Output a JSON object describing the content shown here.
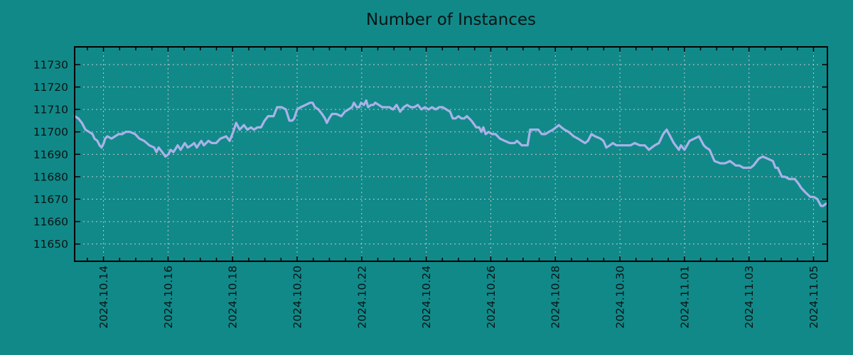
{
  "colors": {
    "background": "#118989",
    "line": "#aab2e8",
    "grid": "#c2c8c5",
    "axis": "#000000",
    "text": "#0a1414"
  },
  "chart_data": {
    "type": "line",
    "title": "Number of Instances",
    "xlabel": "",
    "ylabel": "",
    "legend": false,
    "grid": true,
    "x_unit_days_since": "2024-10-13 00:00",
    "xlim": [
      0.106,
      23.43
    ],
    "ylim": [
      11642.3,
      11737.9
    ],
    "y_ticks": [
      11650,
      11660,
      11670,
      11680,
      11690,
      11700,
      11710,
      11720,
      11730
    ],
    "x_minor_tick_step_days": 0.5,
    "x_major_ticks": [
      {
        "t": 1,
        "label": "2024.10.14"
      },
      {
        "t": 3,
        "label": "2024.10.16"
      },
      {
        "t": 5,
        "label": "2024.10.18"
      },
      {
        "t": 7,
        "label": "2024.10.20"
      },
      {
        "t": 9,
        "label": "2024.10.22"
      },
      {
        "t": 11,
        "label": "2024.10.24"
      },
      {
        "t": 13,
        "label": "2024.10.26"
      },
      {
        "t": 15,
        "label": "2024.10.28"
      },
      {
        "t": 17,
        "label": "2024.10.30"
      },
      {
        "t": 19,
        "label": "2024.11.01"
      },
      {
        "t": 21,
        "label": "2024.11.03"
      },
      {
        "t": 23,
        "label": "2024.11.05"
      }
    ],
    "series": [
      {
        "name": "instances",
        "points": [
          [
            0.11,
            11707
          ],
          [
            0.22,
            11706
          ],
          [
            0.33,
            11704
          ],
          [
            0.44,
            11701
          ],
          [
            0.55,
            11700
          ],
          [
            0.66,
            11699
          ],
          [
            0.72,
            11697
          ],
          [
            0.81,
            11696
          ],
          [
            0.88,
            11694
          ],
          [
            0.94,
            11693
          ],
          [
            1.01,
            11695
          ],
          [
            1.05,
            11697
          ],
          [
            1.12,
            11698
          ],
          [
            1.25,
            11697
          ],
          [
            1.36,
            11698
          ],
          [
            1.47,
            11699
          ],
          [
            1.58,
            11699
          ],
          [
            1.69,
            11700
          ],
          [
            1.82,
            11700
          ],
          [
            1.98,
            11699
          ],
          [
            2.11,
            11697
          ],
          [
            2.26,
            11696
          ],
          [
            2.42,
            11694
          ],
          [
            2.57,
            11693
          ],
          [
            2.64,
            11691
          ],
          [
            2.71,
            11693
          ],
          [
            2.82,
            11691
          ],
          [
            2.92,
            11689
          ],
          [
            3.01,
            11690
          ],
          [
            3.08,
            11692
          ],
          [
            3.17,
            11691
          ],
          [
            3.3,
            11694
          ],
          [
            3.39,
            11692
          ],
          [
            3.52,
            11695
          ],
          [
            3.61,
            11693
          ],
          [
            3.72,
            11694
          ],
          [
            3.81,
            11695
          ],
          [
            3.89,
            11693
          ],
          [
            4.03,
            11696
          ],
          [
            4.11,
            11694
          ],
          [
            4.25,
            11696
          ],
          [
            4.36,
            11695
          ],
          [
            4.49,
            11695
          ],
          [
            4.62,
            11697
          ],
          [
            4.8,
            11698
          ],
          [
            4.91,
            11696
          ],
          [
            5.02,
            11700
          ],
          [
            5.11,
            11704
          ],
          [
            5.22,
            11701
          ],
          [
            5.35,
            11703
          ],
          [
            5.46,
            11701
          ],
          [
            5.57,
            11702
          ],
          [
            5.66,
            11701
          ],
          [
            5.77,
            11702
          ],
          [
            5.88,
            11702
          ],
          [
            5.99,
            11705
          ],
          [
            6.1,
            11707
          ],
          [
            6.27,
            11707
          ],
          [
            6.38,
            11711
          ],
          [
            6.52,
            11711
          ],
          [
            6.65,
            11710
          ],
          [
            6.76,
            11705
          ],
          [
            6.85,
            11705
          ],
          [
            6.91,
            11706
          ],
          [
            7.0,
            11710
          ],
          [
            7.11,
            11711
          ],
          [
            7.26,
            11712
          ],
          [
            7.4,
            11713
          ],
          [
            7.48,
            11713
          ],
          [
            7.55,
            11711
          ],
          [
            7.66,
            11710
          ],
          [
            7.77,
            11708
          ],
          [
            7.86,
            11706
          ],
          [
            7.92,
            11704
          ],
          [
            7.99,
            11706
          ],
          [
            8.08,
            11708
          ],
          [
            8.21,
            11708
          ],
          [
            8.37,
            11707
          ],
          [
            8.48,
            11709
          ],
          [
            8.59,
            11710
          ],
          [
            8.7,
            11711
          ],
          [
            8.76,
            11713
          ],
          [
            8.85,
            11711
          ],
          [
            8.92,
            11711
          ],
          [
            8.98,
            11713
          ],
          [
            9.07,
            11712
          ],
          [
            9.14,
            11714
          ],
          [
            9.2,
            11711
          ],
          [
            9.29,
            11712
          ],
          [
            9.36,
            11712
          ],
          [
            9.42,
            11713
          ],
          [
            9.53,
            11712
          ],
          [
            9.64,
            11711
          ],
          [
            9.75,
            11711
          ],
          [
            9.86,
            11711
          ],
          [
            9.97,
            11710
          ],
          [
            10.08,
            11712
          ],
          [
            10.19,
            11709
          ],
          [
            10.3,
            11711
          ],
          [
            10.41,
            11712
          ],
          [
            10.52,
            11711
          ],
          [
            10.63,
            11711
          ],
          [
            10.74,
            11712
          ],
          [
            10.85,
            11710
          ],
          [
            10.96,
            11711
          ],
          [
            11.07,
            11710
          ],
          [
            11.18,
            11711
          ],
          [
            11.29,
            11710
          ],
          [
            11.4,
            11711
          ],
          [
            11.51,
            11711
          ],
          [
            11.62,
            11710
          ],
          [
            11.74,
            11709
          ],
          [
            11.82,
            11706
          ],
          [
            11.91,
            11706
          ],
          [
            12.0,
            11707
          ],
          [
            12.09,
            11706
          ],
          [
            12.18,
            11706
          ],
          [
            12.26,
            11707
          ],
          [
            12.33,
            11706
          ],
          [
            12.4,
            11705
          ],
          [
            12.55,
            11702
          ],
          [
            12.64,
            11702
          ],
          [
            12.71,
            11700
          ],
          [
            12.77,
            11702
          ],
          [
            12.84,
            11699
          ],
          [
            12.93,
            11700
          ],
          [
            13.04,
            11699
          ],
          [
            13.15,
            11699
          ],
          [
            13.28,
            11697
          ],
          [
            13.43,
            11696
          ],
          [
            13.59,
            11695
          ],
          [
            13.65,
            11695
          ],
          [
            13.74,
            11695
          ],
          [
            13.81,
            11696
          ],
          [
            13.89,
            11695
          ],
          [
            13.96,
            11694
          ],
          [
            14.05,
            11694
          ],
          [
            14.14,
            11694
          ],
          [
            14.22,
            11701
          ],
          [
            14.33,
            11701
          ],
          [
            14.47,
            11701
          ],
          [
            14.58,
            11699
          ],
          [
            14.69,
            11699
          ],
          [
            14.8,
            11700
          ],
          [
            14.93,
            11701
          ],
          [
            15.02,
            11702
          ],
          [
            15.11,
            11703
          ],
          [
            15.19,
            11702
          ],
          [
            15.28,
            11701
          ],
          [
            15.41,
            11700
          ],
          [
            15.57,
            11698
          ],
          [
            15.7,
            11697
          ],
          [
            15.81,
            11696
          ],
          [
            15.92,
            11695
          ],
          [
            16.01,
            11696
          ],
          [
            16.12,
            11699
          ],
          [
            16.23,
            11698
          ],
          [
            16.4,
            11697
          ],
          [
            16.49,
            11696
          ],
          [
            16.58,
            11693
          ],
          [
            16.69,
            11694
          ],
          [
            16.78,
            11695
          ],
          [
            16.89,
            11694
          ],
          [
            17.02,
            11694
          ],
          [
            17.18,
            11694
          ],
          [
            17.33,
            11694
          ],
          [
            17.46,
            11695
          ],
          [
            17.62,
            11694
          ],
          [
            17.77,
            11694
          ],
          [
            17.9,
            11692
          ],
          [
            17.99,
            11693
          ],
          [
            18.08,
            11694
          ],
          [
            18.21,
            11695
          ],
          [
            18.34,
            11699
          ],
          [
            18.45,
            11701
          ],
          [
            18.56,
            11698
          ],
          [
            18.67,
            11695
          ],
          [
            18.83,
            11692
          ],
          [
            18.89,
            11694
          ],
          [
            19.0,
            11692
          ],
          [
            19.16,
            11696
          ],
          [
            19.31,
            11697
          ],
          [
            19.45,
            11698
          ],
          [
            19.6,
            11694
          ],
          [
            19.67,
            11693
          ],
          [
            19.78,
            11692
          ],
          [
            19.93,
            11687
          ],
          [
            20.11,
            11686
          ],
          [
            20.26,
            11686
          ],
          [
            20.41,
            11687
          ],
          [
            20.59,
            11685
          ],
          [
            20.7,
            11685
          ],
          [
            20.83,
            11684
          ],
          [
            20.99,
            11684
          ],
          [
            21.05,
            11684
          ],
          [
            21.14,
            11685
          ],
          [
            21.3,
            11688
          ],
          [
            21.43,
            11689
          ],
          [
            21.58,
            11688
          ],
          [
            21.74,
            11687
          ],
          [
            21.82,
            11684
          ],
          [
            21.89,
            11684
          ],
          [
            22.02,
            11680
          ],
          [
            22.11,
            11680
          ],
          [
            22.24,
            11679
          ],
          [
            22.33,
            11679
          ],
          [
            22.42,
            11679
          ],
          [
            22.53,
            11677
          ],
          [
            22.62,
            11675
          ],
          [
            22.75,
            11673
          ],
          [
            22.9,
            11671
          ],
          [
            23.01,
            11671
          ],
          [
            23.12,
            11670
          ],
          [
            23.23,
            11667
          ],
          [
            23.3,
            11667
          ],
          [
            23.39,
            11668
          ],
          [
            23.42,
            11668
          ]
        ]
      }
    ]
  }
}
